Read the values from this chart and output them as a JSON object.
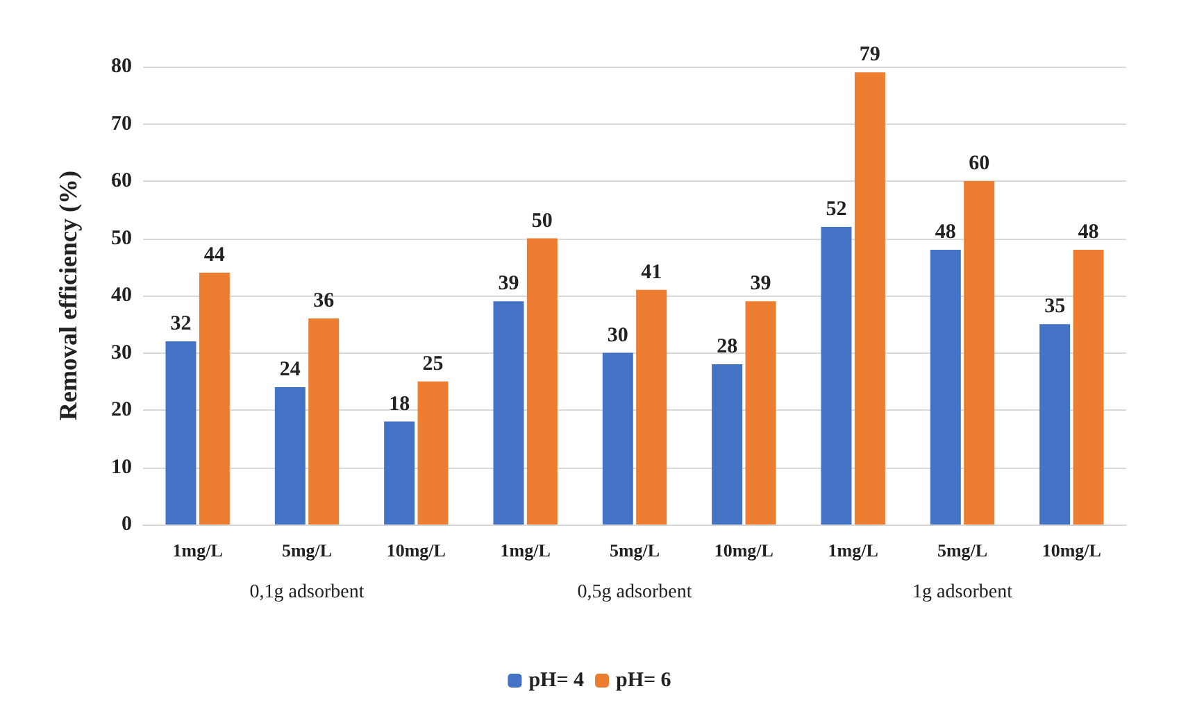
{
  "chart_data": {
    "type": "bar",
    "ylabel": "Removal efficiency (%)",
    "categories": [
      "1mg/L",
      "5mg/L",
      "10mg/L",
      "1mg/L",
      "5mg/L",
      "10mg/L",
      "1mg/L",
      "5mg/L",
      "10mg/L"
    ],
    "annotations": [
      "0,1g adsorbent",
      "0,5g adsorbent",
      "1g adsorbent"
    ],
    "series": [
      {
        "name": "pH= 4",
        "color": "#4472c4",
        "values": [
          32,
          24,
          18,
          39,
          30,
          28,
          52,
          48,
          35
        ]
      },
      {
        "name": "pH= 6",
        "color": "#ed7d31",
        "values": [
          44,
          36,
          25,
          50,
          41,
          39,
          79,
          60,
          48
        ]
      }
    ],
    "ylim": [
      0,
      80
    ],
    "yticks": [
      0,
      10,
      20,
      30,
      40,
      50,
      60,
      70,
      80
    ],
    "grid": "y",
    "legend": "bottom",
    "data_labels": true
  }
}
